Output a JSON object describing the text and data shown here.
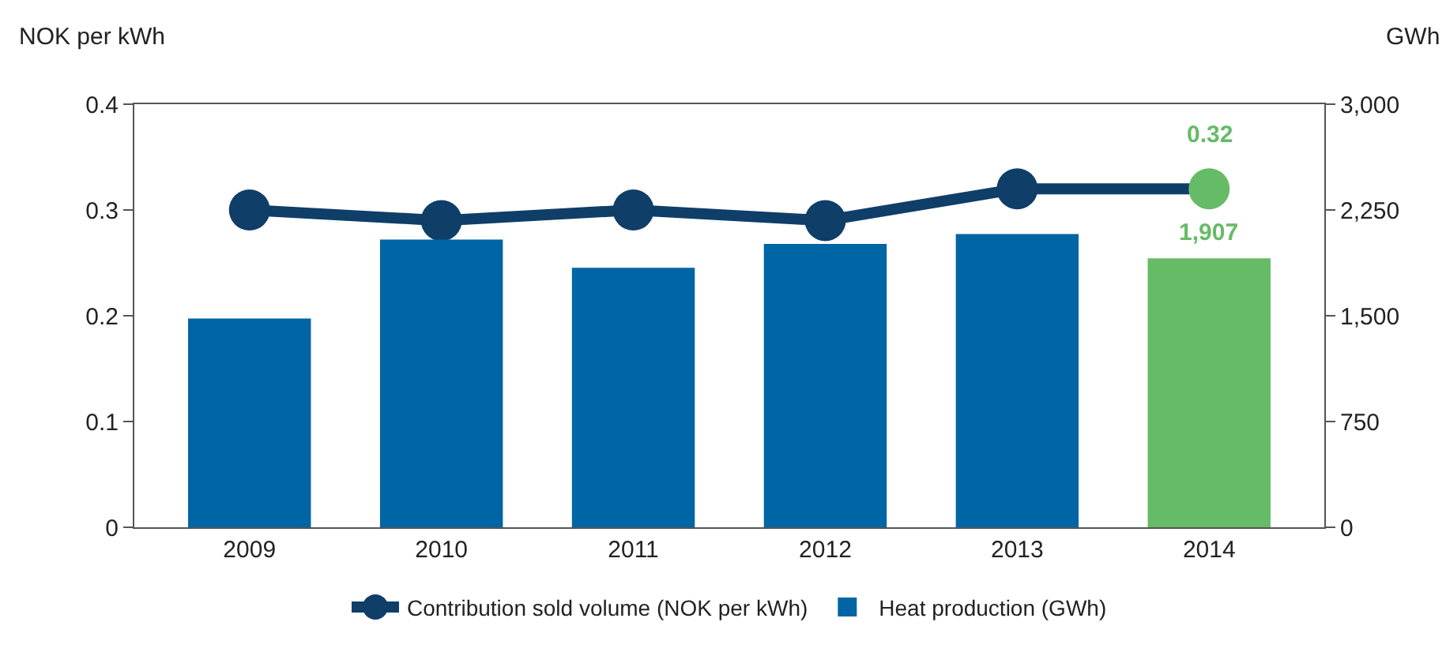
{
  "chart_data": {
    "type": "bar",
    "ylabel": "NOK per kWh",
    "y2label": "GWh",
    "categories": [
      "2009",
      "2010",
      "2011",
      "2012",
      "2013",
      "2014"
    ],
    "series": [
      {
        "name": "Contribution sold volume (NOK per kWh)",
        "type": "line",
        "color": "#0f3e68",
        "values": [
          0.3,
          0.29,
          0.3,
          0.29,
          0.32,
          0.32
        ],
        "colors": [
          "#0f3e68",
          "#0f3e68",
          "#0f3e68",
          "#0f3e68",
          "#0f3e68",
          "#66bb66"
        ],
        "value_labels": [
          null,
          null,
          null,
          null,
          null,
          "0.32"
        ],
        "marker": "circle"
      },
      {
        "name": "Heat production (GWh)",
        "axis": "y2",
        "color": "#0065a4",
        "colors": [
          "#0065a4",
          "#0065a4",
          "#0065a4",
          "#0065a4",
          "#0065a4",
          "#66bb66"
        ],
        "values": [
          1480,
          2040,
          1840,
          2010,
          2080,
          1907
        ],
        "value_labels": [
          null,
          null,
          null,
          null,
          null,
          "1,907"
        ]
      }
    ],
    "ylim": [
      0,
      0.4
    ],
    "yticks": [
      0,
      0.1,
      0.2,
      0.3,
      0.4
    ],
    "y2lim": [
      0,
      3000
    ],
    "y2ticks": [
      {
        "value": 0,
        "label": "0"
      },
      {
        "value": 750,
        "label": "750"
      },
      {
        "value": 1500,
        "label": "1,500"
      },
      {
        "value": 2250,
        "label": "2,250"
      },
      {
        "value": 3000,
        "label": "3,000"
      }
    ],
    "grid": false,
    "legend": "bottom"
  }
}
